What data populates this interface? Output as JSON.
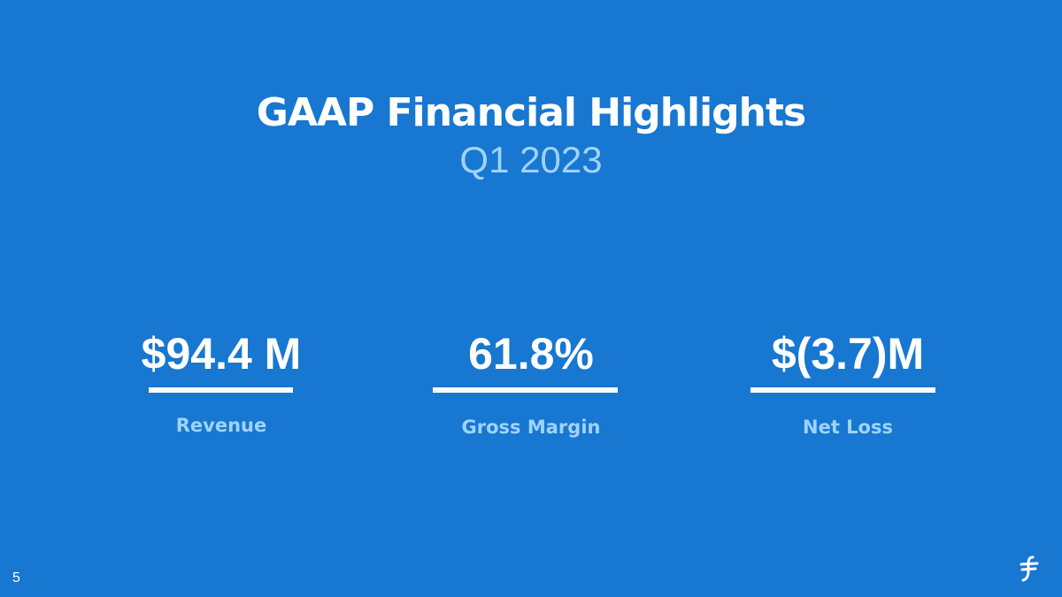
{
  "slide": {
    "title": "GAAP Financial Highlights",
    "subtitle": "Q1 2023",
    "page_number": "5",
    "background_color": "#1777d1",
    "accent_color": "#9fd3ff",
    "logo_icon": "logo-icon"
  },
  "metrics": [
    {
      "value": "$94.4 M",
      "label": "Revenue"
    },
    {
      "value": "61.8%",
      "label": "Gross Margin"
    },
    {
      "value": "$(3.7)M",
      "label": "Net Loss"
    }
  ]
}
